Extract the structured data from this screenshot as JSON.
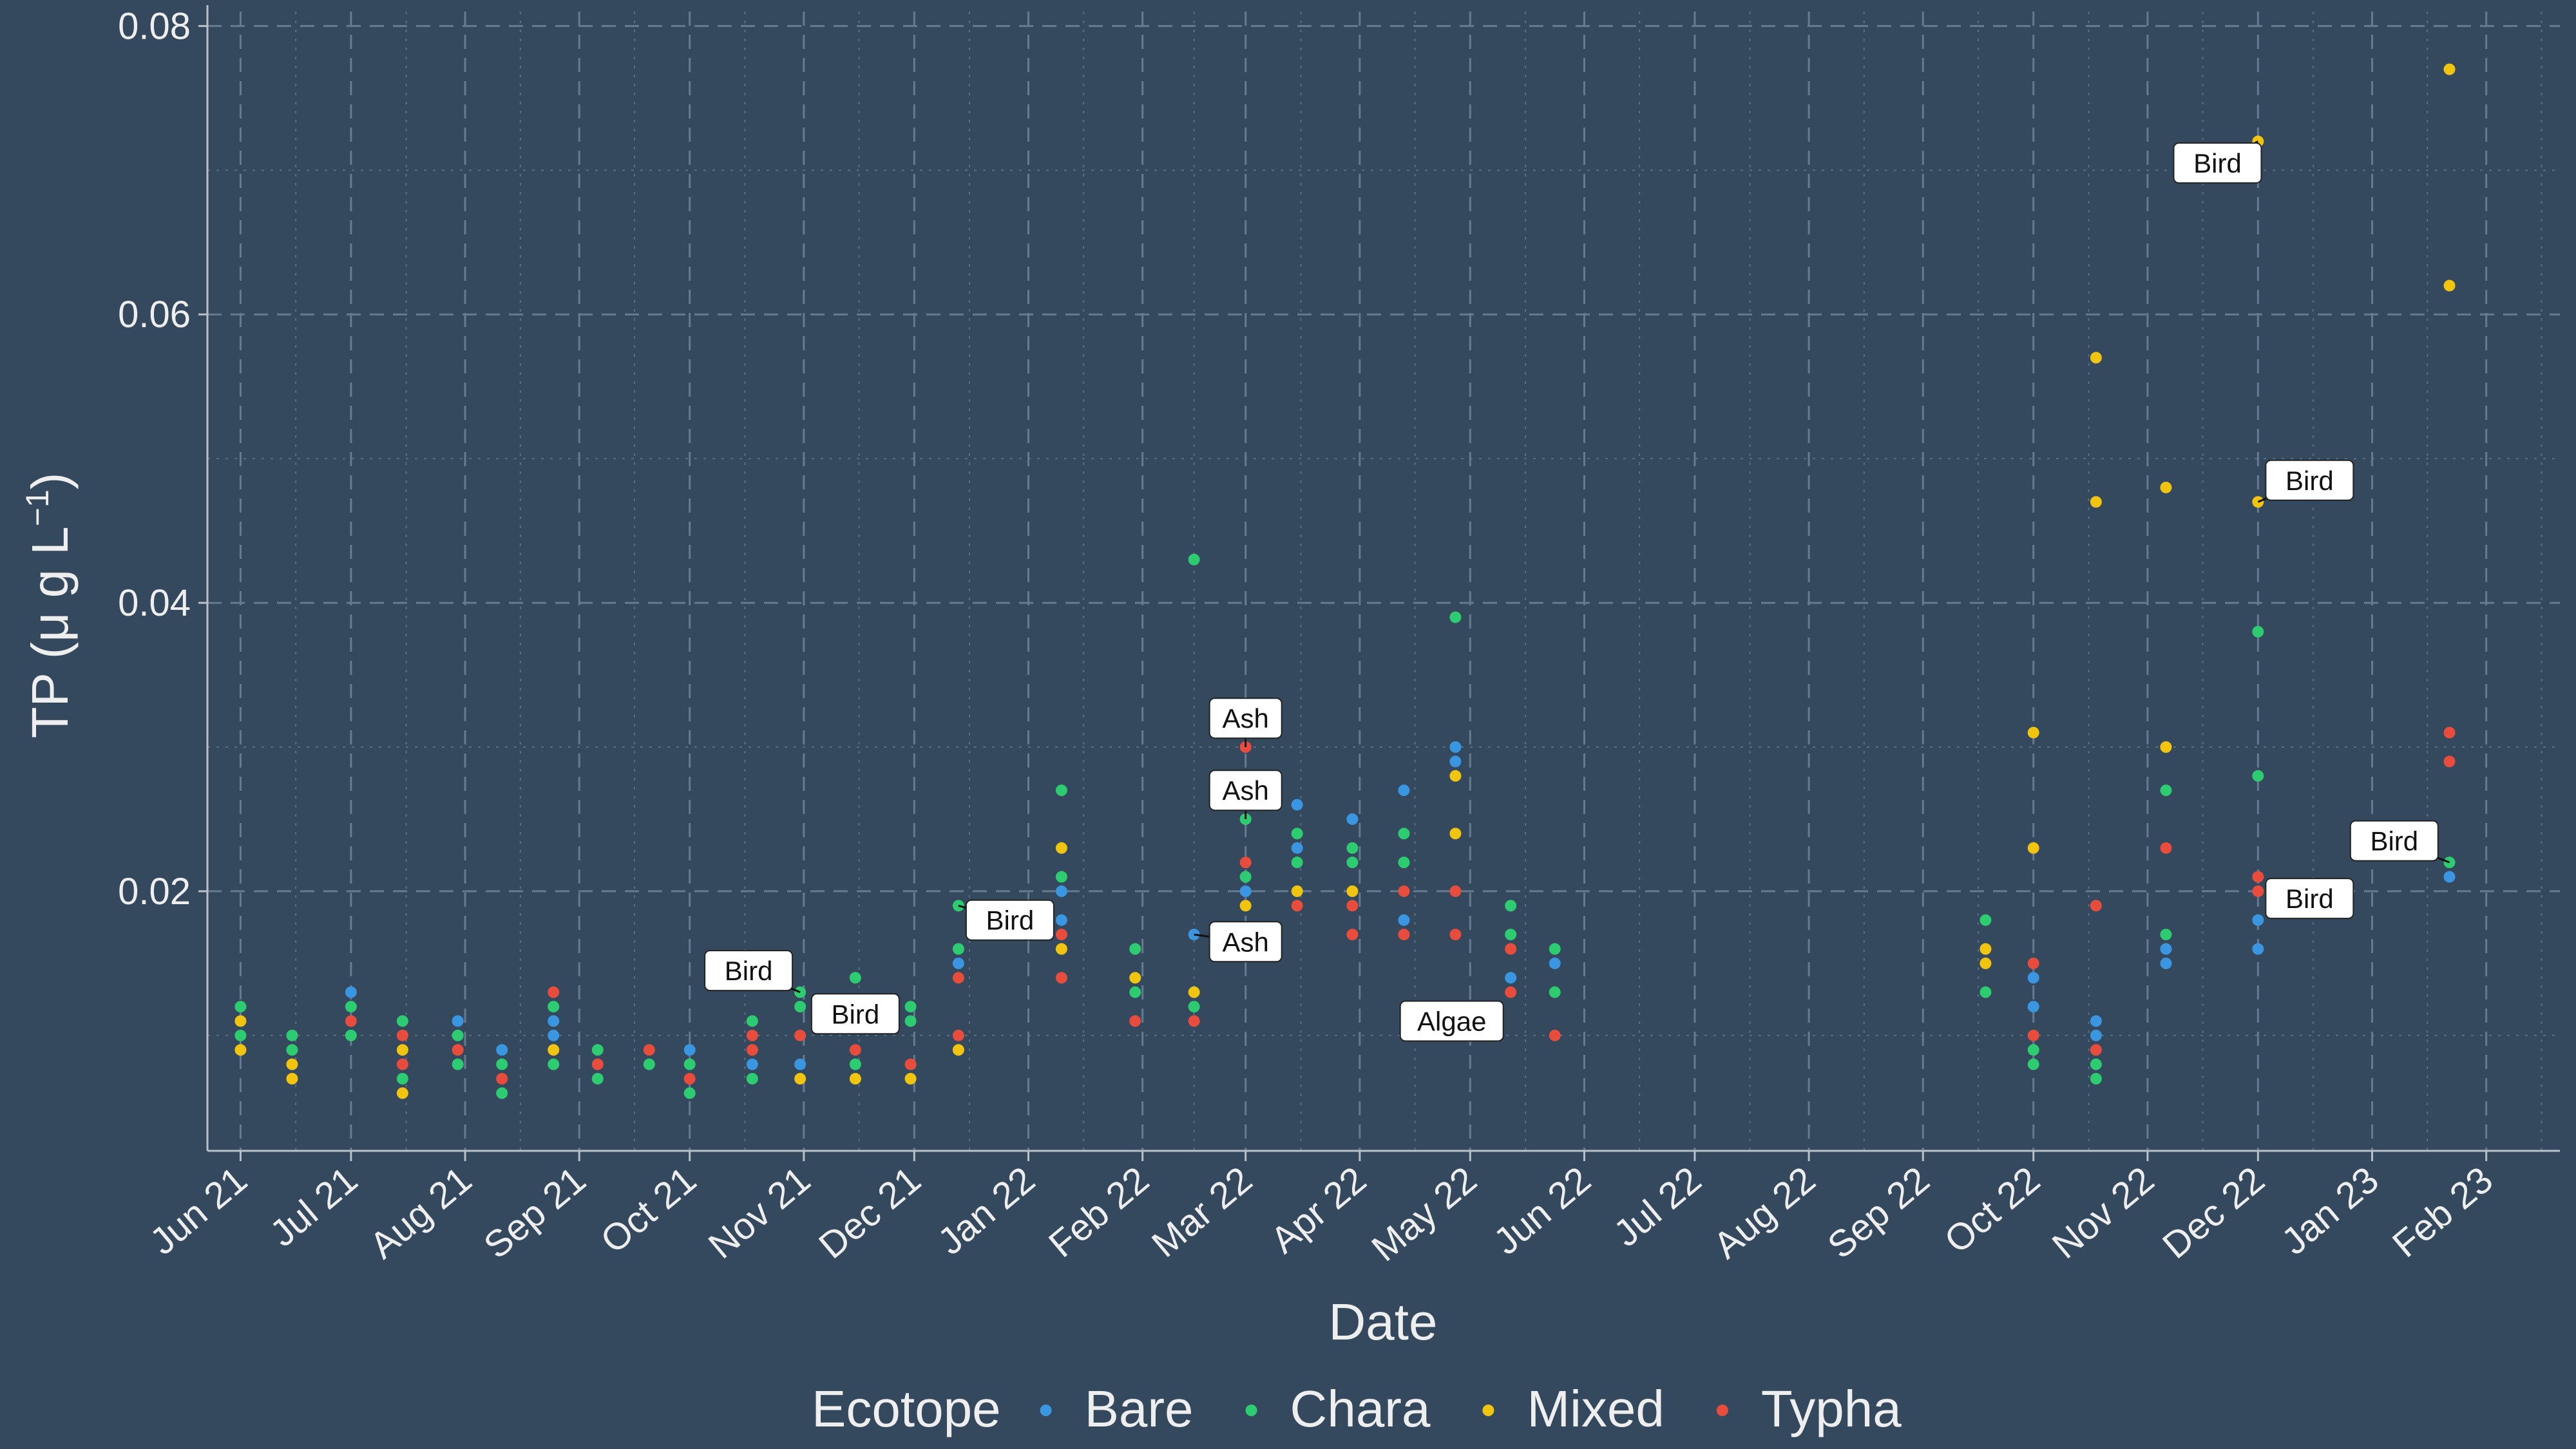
{
  "chart_data": {
    "type": "scatter",
    "xlabel": "Date",
    "ylabel_main": "TP (",
    "ylabel_unit": "μ g L",
    "ylabel_sup": "−1",
    "ylabel_close": ")",
    "ylim": [
      0.002,
      0.081
    ],
    "xlim": [
      "2021-05-23",
      "2023-02-21"
    ],
    "y_ticks": [
      0.02,
      0.04,
      0.06,
      0.08
    ],
    "y_tick_labels": [
      "0.02",
      "0.04",
      "0.06",
      "0.08"
    ],
    "x_ticks": [
      {
        "date": "2021-06-01",
        "label": "Jun 21"
      },
      {
        "date": "2021-07-01",
        "label": "Jul 21"
      },
      {
        "date": "2021-08-01",
        "label": "Aug 21"
      },
      {
        "date": "2021-09-01",
        "label": "Sep 21"
      },
      {
        "date": "2021-10-01",
        "label": "Oct 21"
      },
      {
        "date": "2021-11-01",
        "label": "Nov 21"
      },
      {
        "date": "2021-12-01",
        "label": "Dec 21"
      },
      {
        "date": "2022-01-01",
        "label": "Jan 22"
      },
      {
        "date": "2022-02-01",
        "label": "Feb 22"
      },
      {
        "date": "2022-03-01",
        "label": "Mar 22"
      },
      {
        "date": "2022-04-01",
        "label": "Apr 22"
      },
      {
        "date": "2022-05-01",
        "label": "May 22"
      },
      {
        "date": "2022-06-01",
        "label": "Jun 22"
      },
      {
        "date": "2022-07-01",
        "label": "Jul 22"
      },
      {
        "date": "2022-08-01",
        "label": "Aug 22"
      },
      {
        "date": "2022-09-01",
        "label": "Sep 22"
      },
      {
        "date": "2022-10-01",
        "label": "Oct 22"
      },
      {
        "date": "2022-11-01",
        "label": "Nov 22"
      },
      {
        "date": "2022-12-01",
        "label": "Dec 22"
      },
      {
        "date": "2023-01-01",
        "label": "Jan 23"
      },
      {
        "date": "2023-02-01",
        "label": "Feb 23"
      }
    ],
    "grid": true,
    "legend": {
      "title": "Ecotope",
      "position": "bottom"
    },
    "series": [
      {
        "name": "Bare",
        "color": "#3a96e0",
        "points": [
          [
            "2021-07-01",
            0.013
          ],
          [
            "2021-07-30",
            0.011
          ],
          [
            "2021-08-11",
            0.009
          ],
          [
            "2021-08-25",
            0.011
          ],
          [
            "2021-08-25",
            0.01
          ],
          [
            "2021-10-01",
            0.009
          ],
          [
            "2021-10-18",
            0.008
          ],
          [
            "2021-10-31",
            0.008
          ],
          [
            "2021-12-13",
            0.015
          ],
          [
            "2022-01-10",
            0.02
          ],
          [
            "2022-01-10",
            0.018
          ],
          [
            "2022-02-15",
            0.017
          ],
          [
            "2022-03-01",
            0.02
          ],
          [
            "2022-03-15",
            0.026
          ],
          [
            "2022-03-15",
            0.023
          ],
          [
            "2022-03-30",
            0.025
          ],
          [
            "2022-04-13",
            0.027
          ],
          [
            "2022-04-13",
            0.018
          ],
          [
            "2022-04-27",
            0.03
          ],
          [
            "2022-04-27",
            0.029
          ],
          [
            "2022-05-12",
            0.014
          ],
          [
            "2022-05-24",
            0.015
          ],
          [
            "2022-10-01",
            0.014
          ],
          [
            "2022-10-01",
            0.012
          ],
          [
            "2022-10-18",
            0.011
          ],
          [
            "2022-10-18",
            0.01
          ],
          [
            "2022-11-06",
            0.016
          ],
          [
            "2022-11-06",
            0.015
          ],
          [
            "2022-12-01",
            0.018
          ],
          [
            "2022-12-01",
            0.016
          ],
          [
            "2023-01-22",
            0.021
          ]
        ]
      },
      {
        "name": "Chara",
        "color": "#2ecc71",
        "points": [
          [
            "2021-06-01",
            0.012
          ],
          [
            "2021-06-01",
            0.01
          ],
          [
            "2021-06-15",
            0.01
          ],
          [
            "2021-06-15",
            0.009
          ],
          [
            "2021-07-01",
            0.012
          ],
          [
            "2021-07-01",
            0.01
          ],
          [
            "2021-07-15",
            0.011
          ],
          [
            "2021-07-15",
            0.007
          ],
          [
            "2021-07-30",
            0.01
          ],
          [
            "2021-07-30",
            0.008
          ],
          [
            "2021-08-11",
            0.008
          ],
          [
            "2021-08-11",
            0.006
          ],
          [
            "2021-08-25",
            0.012
          ],
          [
            "2021-08-25",
            0.008
          ],
          [
            "2021-09-06",
            0.009
          ],
          [
            "2021-09-06",
            0.007
          ],
          [
            "2021-09-20",
            0.008
          ],
          [
            "2021-10-01",
            0.008
          ],
          [
            "2021-10-01",
            0.006
          ],
          [
            "2021-10-18",
            0.011
          ],
          [
            "2021-10-18",
            0.007
          ],
          [
            "2021-10-31",
            0.013
          ],
          [
            "2021-10-31",
            0.012
          ],
          [
            "2021-11-15",
            0.014
          ],
          [
            "2021-11-15",
            0.008
          ],
          [
            "2021-11-30",
            0.012
          ],
          [
            "2021-11-30",
            0.011
          ],
          [
            "2021-12-13",
            0.019
          ],
          [
            "2021-12-13",
            0.016
          ],
          [
            "2022-01-10",
            0.027
          ],
          [
            "2022-01-10",
            0.021
          ],
          [
            "2022-01-30",
            0.016
          ],
          [
            "2022-01-30",
            0.013
          ],
          [
            "2022-02-15",
            0.043
          ],
          [
            "2022-02-15",
            0.012
          ],
          [
            "2022-03-01",
            0.025
          ],
          [
            "2022-03-01",
            0.021
          ],
          [
            "2022-03-15",
            0.024
          ],
          [
            "2022-03-15",
            0.022
          ],
          [
            "2022-03-30",
            0.023
          ],
          [
            "2022-03-30",
            0.022
          ],
          [
            "2022-04-13",
            0.024
          ],
          [
            "2022-04-13",
            0.022
          ],
          [
            "2022-04-27",
            0.039
          ],
          [
            "2022-05-12",
            0.019
          ],
          [
            "2022-05-12",
            0.017
          ],
          [
            "2022-05-24",
            0.016
          ],
          [
            "2022-05-24",
            0.013
          ],
          [
            "2022-09-18",
            0.018
          ],
          [
            "2022-09-18",
            0.013
          ],
          [
            "2022-10-01",
            0.009
          ],
          [
            "2022-10-01",
            0.008
          ],
          [
            "2022-10-18",
            0.008
          ],
          [
            "2022-10-18",
            0.007
          ],
          [
            "2022-11-06",
            0.027
          ],
          [
            "2022-11-06",
            0.017
          ],
          [
            "2022-12-01",
            0.038
          ],
          [
            "2022-12-01",
            0.028
          ],
          [
            "2023-01-22",
            0.022
          ]
        ]
      },
      {
        "name": "Mixed",
        "color": "#f1c40f",
        "points": [
          [
            "2021-06-01",
            0.011
          ],
          [
            "2021-06-01",
            0.009
          ],
          [
            "2021-06-15",
            0.008
          ],
          [
            "2021-06-15",
            0.007
          ],
          [
            "2021-07-15",
            0.009
          ],
          [
            "2021-07-15",
            0.006
          ],
          [
            "2021-08-25",
            0.009
          ],
          [
            "2021-10-31",
            0.007
          ],
          [
            "2021-11-15",
            0.007
          ],
          [
            "2021-11-30",
            0.007
          ],
          [
            "2021-12-13",
            0.009
          ],
          [
            "2022-01-10",
            0.023
          ],
          [
            "2022-01-10",
            0.016
          ],
          [
            "2022-01-30",
            0.014
          ],
          [
            "2022-02-15",
            0.013
          ],
          [
            "2022-03-01",
            0.019
          ],
          [
            "2022-03-15",
            0.02
          ],
          [
            "2022-03-30",
            0.02
          ],
          [
            "2022-04-27",
            0.028
          ],
          [
            "2022-04-27",
            0.024
          ],
          [
            "2022-09-18",
            0.016
          ],
          [
            "2022-09-18",
            0.015
          ],
          [
            "2022-10-01",
            0.031
          ],
          [
            "2022-10-01",
            0.023
          ],
          [
            "2022-10-18",
            0.057
          ],
          [
            "2022-10-18",
            0.047
          ],
          [
            "2022-11-06",
            0.048
          ],
          [
            "2022-11-06",
            0.03
          ],
          [
            "2022-12-01",
            0.072
          ],
          [
            "2022-12-01",
            0.047
          ],
          [
            "2023-01-22",
            0.077
          ],
          [
            "2023-01-22",
            0.062
          ]
        ]
      },
      {
        "name": "Typha",
        "color": "#e74c3c",
        "points": [
          [
            "2021-07-01",
            0.011
          ],
          [
            "2021-07-15",
            0.01
          ],
          [
            "2021-07-15",
            0.008
          ],
          [
            "2021-07-30",
            0.009
          ],
          [
            "2021-08-11",
            0.007
          ],
          [
            "2021-08-25",
            0.013
          ],
          [
            "2021-09-06",
            0.008
          ],
          [
            "2021-09-20",
            0.009
          ],
          [
            "2021-10-01",
            0.007
          ],
          [
            "2021-10-18",
            0.01
          ],
          [
            "2021-10-18",
            0.009
          ],
          [
            "2021-10-31",
            0.01
          ],
          [
            "2021-11-15",
            0.009
          ],
          [
            "2021-11-30",
            0.008
          ],
          [
            "2021-12-13",
            0.014
          ],
          [
            "2021-12-13",
            0.01
          ],
          [
            "2022-01-10",
            0.017
          ],
          [
            "2022-01-10",
            0.014
          ],
          [
            "2022-01-30",
            0.011
          ],
          [
            "2022-02-15",
            0.011
          ],
          [
            "2022-03-01",
            0.03
          ],
          [
            "2022-03-01",
            0.022
          ],
          [
            "2022-03-15",
            0.019
          ],
          [
            "2022-03-30",
            0.019
          ],
          [
            "2022-03-30",
            0.017
          ],
          [
            "2022-04-13",
            0.02
          ],
          [
            "2022-04-13",
            0.017
          ],
          [
            "2022-04-27",
            0.02
          ],
          [
            "2022-04-27",
            0.017
          ],
          [
            "2022-05-12",
            0.016
          ],
          [
            "2022-05-12",
            0.013
          ],
          [
            "2022-05-24",
            0.01
          ],
          [
            "2022-10-01",
            0.015
          ],
          [
            "2022-10-01",
            0.01
          ],
          [
            "2022-10-18",
            0.019
          ],
          [
            "2022-10-18",
            0.009
          ],
          [
            "2022-11-06",
            0.023
          ],
          [
            "2022-12-01",
            0.021
          ],
          [
            "2022-12-01",
            0.02
          ],
          [
            "2023-01-22",
            0.031
          ],
          [
            "2023-01-22",
            0.029
          ]
        ]
      }
    ],
    "annotations": [
      {
        "text": "Bird",
        "x": "2021-10-17",
        "y": 0.0145,
        "point_x": "2021-10-31",
        "point_y": 0.013
      },
      {
        "text": "Bird",
        "x": "2021-11-15",
        "y": 0.0115,
        "point_x": "2021-11-15",
        "point_y": 0.0115
      },
      {
        "text": "Bird",
        "x": "2021-12-27",
        "y": 0.018,
        "point_x": "2021-12-13",
        "point_y": 0.019
      },
      {
        "text": "Ash",
        "x": "2022-03-01",
        "y": 0.032,
        "point_x": "2022-03-01",
        "point_y": 0.03
      },
      {
        "text": "Ash",
        "x": "2022-03-01",
        "y": 0.027,
        "point_x": "2022-03-01",
        "point_y": 0.025
      },
      {
        "text": "Ash",
        "x": "2022-03-01",
        "y": 0.0165,
        "point_x": "2022-02-15",
        "point_y": 0.017
      },
      {
        "text": "Algae",
        "x": "2022-04-26",
        "y": 0.011,
        "point_x": "2022-04-26",
        "point_y": 0.011
      },
      {
        "text": "Bird",
        "x": "2022-11-20",
        "y": 0.0705,
        "point_x": "2022-12-01",
        "point_y": 0.072
      },
      {
        "text": "Bird",
        "x": "2022-12-15",
        "y": 0.0485,
        "point_x": "2022-12-01",
        "point_y": 0.047
      },
      {
        "text": "Bird",
        "x": "2022-12-15",
        "y": 0.0195,
        "point_x": "2022-12-15",
        "point_y": 0.0195
      },
      {
        "text": "Bird",
        "x": "2023-01-07",
        "y": 0.0235,
        "point_x": "2023-01-22",
        "point_y": 0.022
      }
    ]
  }
}
